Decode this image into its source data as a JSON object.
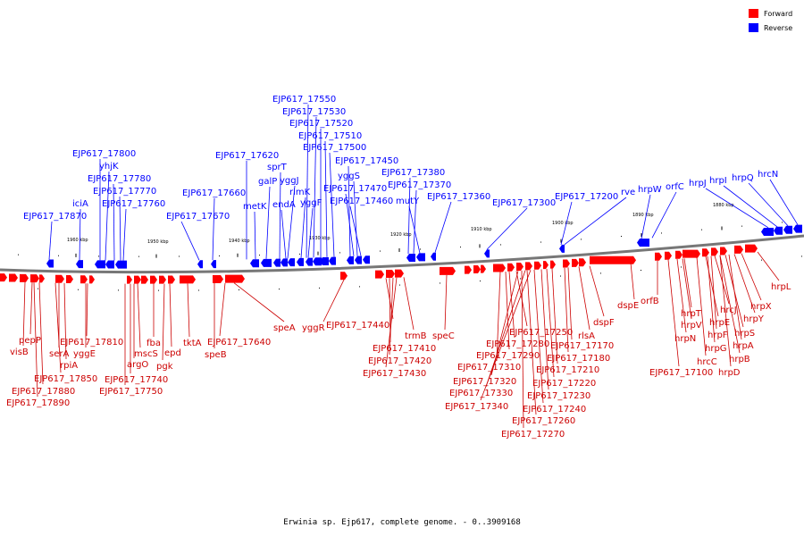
{
  "legend": [
    {
      "label": "Forward",
      "color": "#ff0000"
    },
    {
      "label": "Reverse",
      "color": "#0000ff"
    }
  ],
  "caption": "Erwinia sp. Ejp617, complete genome. - 0..3909168",
  "ticks": [
    "1960 kbp",
    "1950 kbp",
    "1940 kbp",
    "1930 kbp",
    "1920 kbp",
    "1910 kbp",
    "1900 kbp",
    "1890 kbp",
    "1880 kbp"
  ],
  "reverse_labels": [
    "EJP617_17550",
    "EJP617_17530",
    "EJP617_17520",
    "EJP617_17510",
    "EJP617_17500",
    "EJP617_17450",
    "yggS",
    "EJP617_17470",
    "EJP617_17460",
    "yggF",
    "rimK",
    "yggJ",
    "sprT",
    "galP",
    "endA",
    "metK",
    "EJP617_17620",
    "EJP617_17660",
    "EJP617_17670",
    "EJP617_17800",
    "yhjK",
    "EJP617_17780",
    "EJP617_17770",
    "EJP617_17760",
    "iciA",
    "EJP617_17870",
    "EJP617_17380",
    "EJP617_17370",
    "mutY",
    "EJP617_17360",
    "EJP617_17300",
    "EJP617_17200",
    "rve",
    "hrpW",
    "orfC",
    "hrpJ",
    "hrpI",
    "hrpQ",
    "hrcN"
  ],
  "forward_labels": [
    "pepP",
    "visB",
    "serA",
    "rpiA",
    "yggE",
    "EJP617_17810",
    "EJP617_17850",
    "EJP617_17880",
    "EJP617_17890",
    "argO",
    "mscS",
    "fba",
    "EJP617_17740",
    "EJP617_17750",
    "pgk",
    "epd",
    "tktA",
    "speB",
    "EJP617_17640",
    "speA",
    "yggR",
    "EJP617_17440",
    "EJP617_17410",
    "EJP617_17420",
    "EJP617_17430",
    "trmB",
    "speC",
    "EJP617_17250",
    "EJP617_17280",
    "EJP617_17290",
    "EJP617_17310",
    "EJP617_17320",
    "EJP617_17330",
    "EJP617_17340",
    "rlsA",
    "EJP617_17170",
    "EJP617_17180",
    "EJP617_17210",
    "EJP617_17220",
    "EJP617_17230",
    "EJP617_17240",
    "EJP617_17260",
    "EJP617_17270",
    "dspF",
    "dspE",
    "orfB",
    "EJP617_17100",
    "hrpN",
    "hrpT",
    "hrpV",
    "hrcC",
    "hrpE",
    "hrpF",
    "hrpG",
    "hrcJ",
    "hrpD",
    "hrpS",
    "hrpA",
    "hrpB",
    "hrpY",
    "hrpX",
    "hrpL"
  ]
}
